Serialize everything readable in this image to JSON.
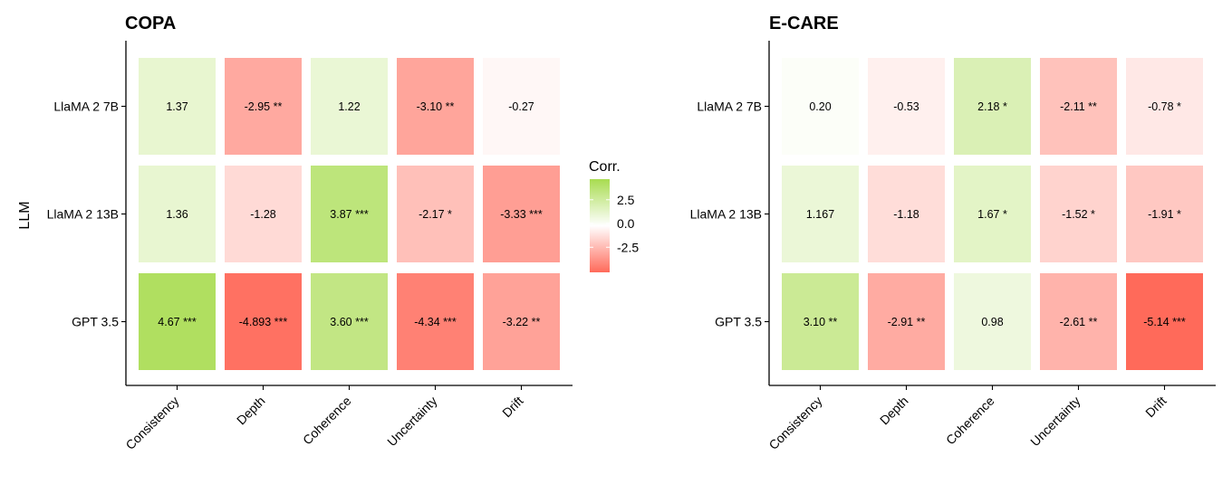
{
  "chart_data": [
    {
      "type": "heatmap",
      "title": "COPA",
      "xlabel": "",
      "ylabel": "LLM",
      "x_categories": [
        "Consistency",
        "Depth",
        "Coherence",
        "Uncertainty",
        "Drift"
      ],
      "y_categories": [
        "LlaMA 2 7B",
        "LlaMA 2 13B",
        "GPT 3.5"
      ],
      "values": [
        [
          1.37,
          -2.95,
          1.22,
          -3.1,
          -0.27
        ],
        [
          1.36,
          -1.28,
          3.87,
          -2.17,
          -3.33
        ],
        [
          4.67,
          -4.893,
          3.6,
          -4.34,
          -3.22
        ]
      ],
      "labels": [
        [
          "1.37",
          "-2.95 **",
          "1.22",
          "-3.10 **",
          "-0.27"
        ],
        [
          "1.36",
          "-1.28",
          "3.87 ***",
          "-2.17 *",
          "-3.33 ***"
        ],
        [
          "4.67 ***",
          "-4.893 ***",
          "3.60 ***",
          "-4.34 ***",
          "-3.22 **"
        ]
      ]
    },
    {
      "type": "heatmap",
      "title": "E-CARE",
      "xlabel": "",
      "ylabel": "",
      "x_categories": [
        "Consistency",
        "Depth",
        "Coherence",
        "Uncertainty",
        "Drift"
      ],
      "y_categories": [
        "LlaMA 2 7B",
        "LlaMA 2 13B",
        "GPT 3.5"
      ],
      "values": [
        [
          0.2,
          -0.53,
          2.18,
          -2.11,
          -0.78
        ],
        [
          1.167,
          -1.18,
          1.67,
          -1.52,
          -1.91
        ],
        [
          3.1,
          -2.91,
          0.98,
          -2.61,
          -5.14
        ]
      ],
      "labels": [
        [
          "0.20",
          "-0.53",
          "2.18 *",
          "-2.11 **",
          "-0.78 *"
        ],
        [
          "1.167",
          "-1.18",
          "1.67 *",
          "-1.52 *",
          "-1.91 *"
        ],
        [
          "3.10 **",
          "-2.91 **",
          "0.98",
          "-2.61 **",
          "-5.14 ***"
        ]
      ]
    }
  ],
  "legend": {
    "title": "Corr.",
    "ticks": [
      2.5,
      0.0,
      -2.5
    ],
    "tick_labels": [
      "2.5",
      "0.0",
      "-2.5"
    ],
    "range": [
      -5.14,
      4.67
    ]
  },
  "colors": {
    "positive": "#a8dc50",
    "negative": "#ff6a5a",
    "neutral": "#ffffff"
  }
}
